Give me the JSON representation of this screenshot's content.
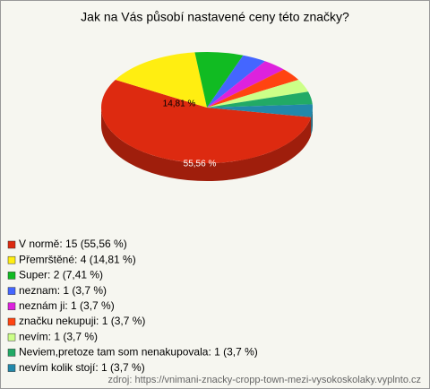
{
  "chart_data": {
    "type": "pie",
    "title": "Jak na Vás působí nastavené ceny této značky?",
    "categories": [
      "V normě: 15 (55,56 %)",
      "Přemrštěné: 4 (14,81 %)",
      "Super: 2 (7,41 %)",
      "neznam: 1 (3,7 %)",
      "neznám ji: 1 (3,7 %)",
      "značku nekupuji: 1 (3,7 %)",
      "nevím: 1 (3,7 %)",
      "Neviem,pretoze tam som nenakupovala: 1 (3,7 %)",
      "nevím kolik stojí: 1 (3,7 %)"
    ],
    "values": [
      55.56,
      14.81,
      7.41,
      3.7,
      3.7,
      3.7,
      3.7,
      3.7,
      3.7
    ],
    "value_labels": [
      "55,56 %",
      "14,81 %",
      null,
      null,
      null,
      null,
      null,
      null,
      null
    ],
    "colors": [
      "#dd2a10",
      "#ffee11",
      "#11bb22",
      "#4466ff",
      "#dd22dd",
      "#ff4411",
      "#ccff88",
      "#22aa66",
      "#2288aa"
    ],
    "source": "zdroj: https://vnimani-znacky-cropp-town-mezi-vysokoskolaky.vyplnto.cz"
  }
}
